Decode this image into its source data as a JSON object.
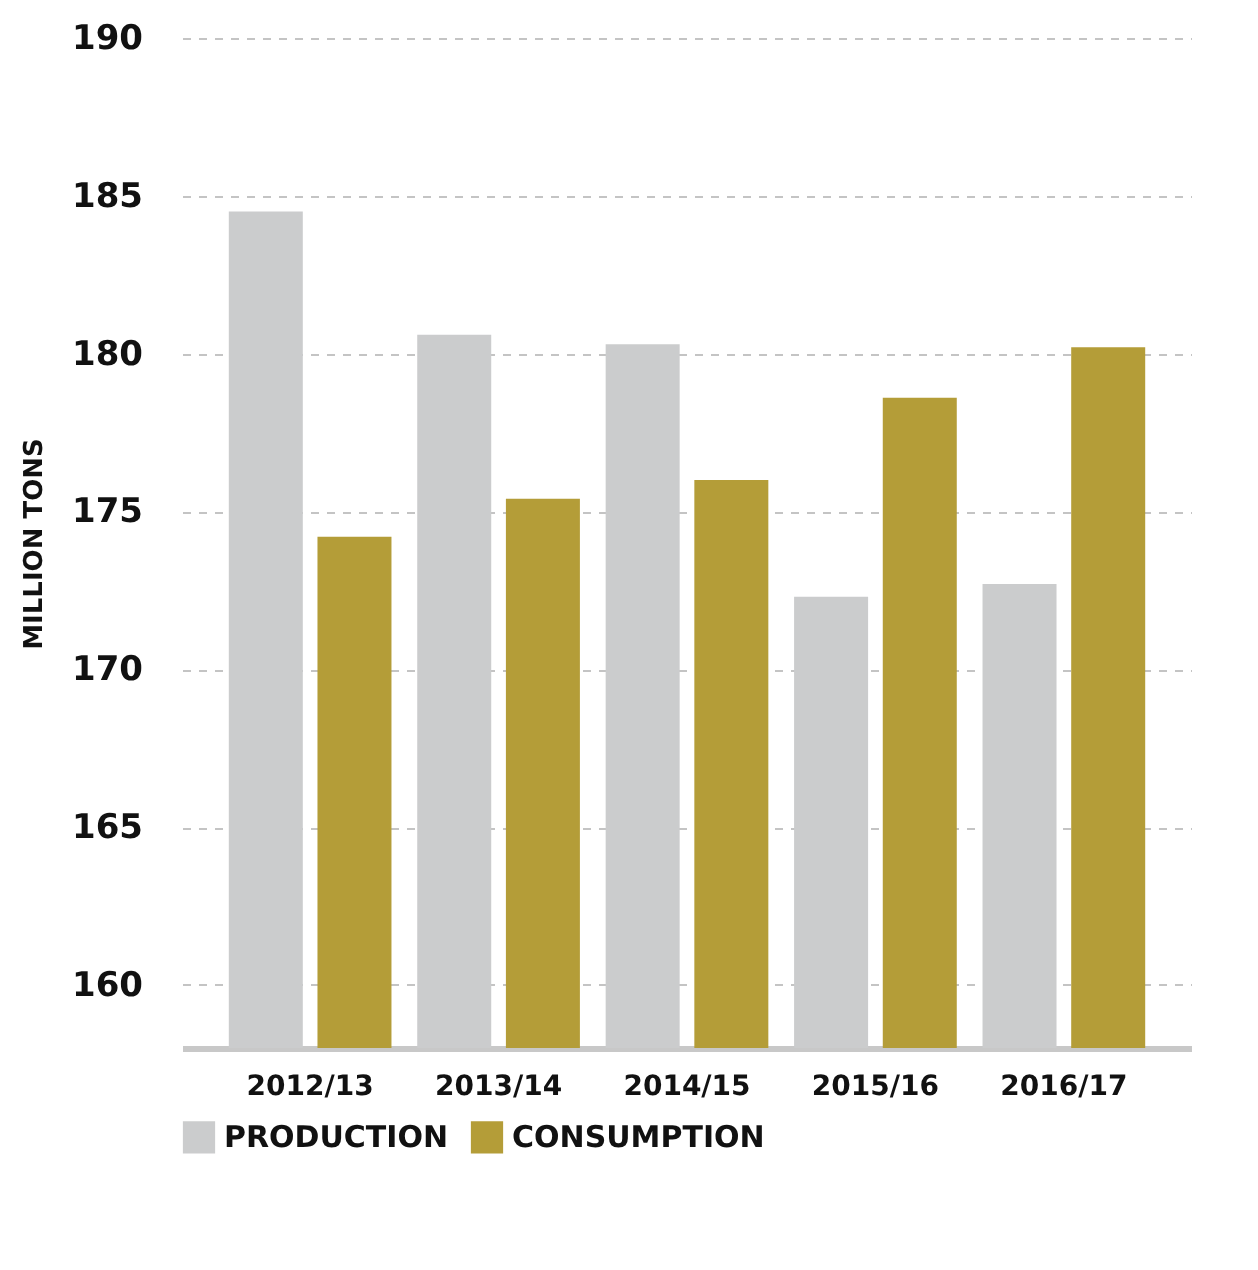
{
  "chart_data": {
    "type": "bar",
    "ylabel": "MILLION TONS",
    "categories": [
      "2012/13",
      "2013/14",
      "2014/15",
      "2015/16",
      "2016/17"
    ],
    "series": [
      {
        "name": "PRODUCTION",
        "color": "#cbcccd",
        "values": [
          184.5,
          180.6,
          180.3,
          172.3,
          172.7
        ]
      },
      {
        "name": "CONSUMPTION",
        "color": "#b49d38",
        "values": [
          174.2,
          175.4,
          176.0,
          178.6,
          180.2
        ]
      }
    ],
    "ylim": [
      158,
      190
    ],
    "yticks": [
      160,
      165,
      170,
      175,
      180,
      185,
      190
    ],
    "grid": "y",
    "legend": "bottom"
  }
}
